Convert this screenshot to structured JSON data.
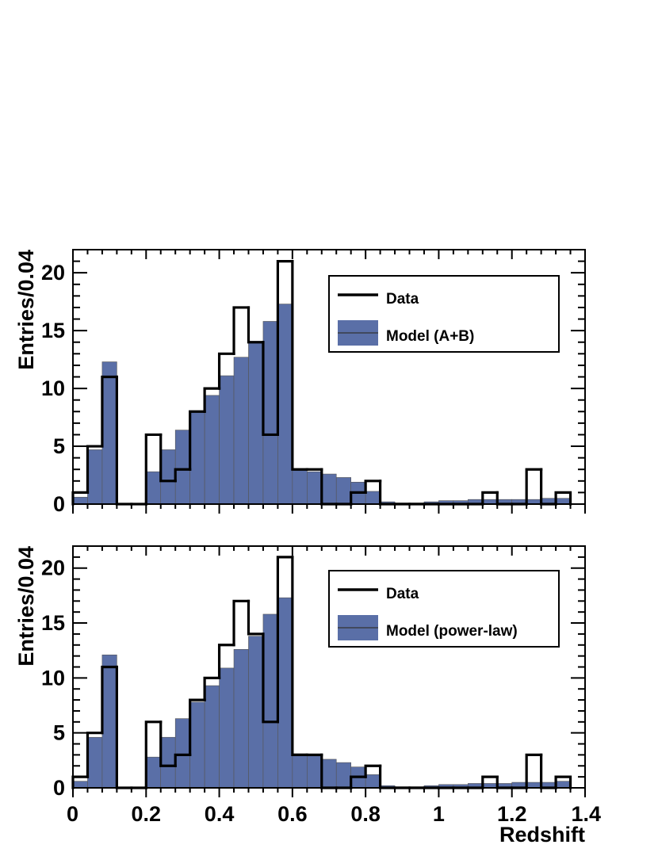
{
  "chart_data": [
    {
      "type": "bar",
      "xlabel": "",
      "ylabel": "Entries/0.04",
      "xlim": [
        0,
        1.4
      ],
      "ylim": [
        0,
        22
      ],
      "bin_width": 0.04,
      "xticks": [
        "0",
        "0.2",
        "0.4",
        "0.6",
        "0.8",
        "1",
        "1.2",
        "1.4"
      ],
      "yticks": [
        "0",
        "5",
        "10",
        "15",
        "20"
      ],
      "legend": {
        "position": "top-right",
        "entries": [
          {
            "label": "Data",
            "style": "line"
          },
          {
            "label": "Model (A+B)",
            "style": "fill"
          }
        ]
      },
      "series": [
        {
          "name": "Data",
          "style": "step",
          "values": [
            1,
            5,
            11,
            0,
            0,
            6,
            2,
            3,
            8,
            10,
            13,
            17,
            14,
            6,
            21,
            3,
            3,
            0,
            0,
            1,
            2,
            0,
            0,
            0,
            0,
            0,
            0,
            0,
            1,
            0,
            0,
            3,
            0,
            1
          ]
        },
        {
          "name": "Model (A+B)",
          "style": "filled-step",
          "color": "#5a6fa7",
          "values": [
            0.6,
            4.7,
            12.3,
            0,
            0,
            2.8,
            4.7,
            6.4,
            8.0,
            9.4,
            11.1,
            12.7,
            14.0,
            15.8,
            17.3,
            2.9,
            2.8,
            2.6,
            2.3,
            1.9,
            1.1,
            0.2,
            0.1,
            0.1,
            0.2,
            0.3,
            0.3,
            0.4,
            0.4,
            0.4,
            0.4,
            0.4,
            0.5,
            0.5
          ]
        }
      ]
    },
    {
      "type": "bar",
      "xlabel": "Redshift",
      "ylabel": "Entries/0.04",
      "xlim": [
        0,
        1.4
      ],
      "ylim": [
        0,
        22
      ],
      "bin_width": 0.04,
      "xticks": [
        "0",
        "0.2",
        "0.4",
        "0.6",
        "0.8",
        "1",
        "1.2",
        "1.4"
      ],
      "yticks": [
        "0",
        "5",
        "10",
        "15",
        "20"
      ],
      "legend": {
        "position": "top-right",
        "entries": [
          {
            "label": "Data",
            "style": "line"
          },
          {
            "label": "Model (power-law)",
            "style": "fill"
          }
        ]
      },
      "series": [
        {
          "name": "Data",
          "style": "step",
          "values": [
            1,
            5,
            11,
            0,
            0,
            6,
            2,
            3,
            8,
            10,
            13,
            17,
            14,
            6,
            21,
            3,
            3,
            0,
            0,
            1,
            2,
            0,
            0,
            0,
            0,
            0,
            0,
            0,
            1,
            0,
            0,
            3,
            0,
            1
          ]
        },
        {
          "name": "Model (power-law)",
          "style": "filled-step",
          "color": "#5a6fa7",
          "values": [
            0.6,
            4.6,
            12.1,
            0,
            0,
            2.8,
            4.6,
            6.3,
            7.8,
            9.3,
            10.9,
            12.6,
            13.8,
            15.8,
            17.3,
            3.1,
            2.9,
            2.6,
            2.3,
            1.9,
            1.2,
            0.2,
            0.1,
            0.1,
            0.2,
            0.3,
            0.3,
            0.4,
            0.4,
            0.4,
            0.5,
            0.5,
            0.5,
            0.6
          ]
        }
      ]
    }
  ]
}
